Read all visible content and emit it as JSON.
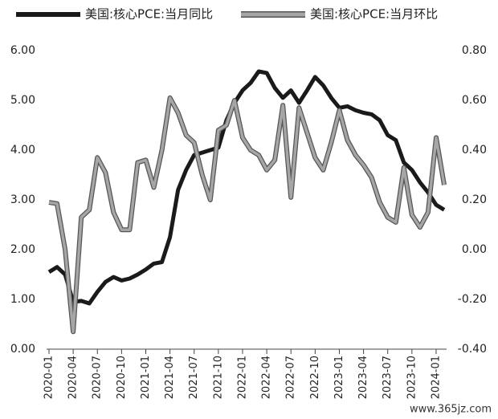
{
  "chart_data": {
    "type": "line",
    "categories": [
      "2020-01",
      null,
      null,
      "2020-04",
      null,
      null,
      "2020-07",
      null,
      null,
      "2020-10",
      null,
      null,
      "2021-01",
      null,
      null,
      "2021-04",
      null,
      null,
      "2021-07",
      null,
      null,
      "2021-10",
      null,
      null,
      "2022-01",
      null,
      null,
      "2022-04",
      null,
      null,
      "2022-07",
      null,
      null,
      "2022-10",
      null,
      null,
      "2023-01",
      null,
      null,
      "2023-04",
      null,
      null,
      "2023-07",
      null,
      null,
      "2023-10",
      null,
      null,
      "2024-01",
      null
    ],
    "series": [
      {
        "name": "美国:核心PCE:当月同比",
        "color": "#1a1a1a",
        "values": [
          1.55,
          1.65,
          1.5,
          0.95,
          0.97,
          0.92,
          1.15,
          1.35,
          1.45,
          1.38,
          1.42,
          1.5,
          1.6,
          1.72,
          1.75,
          2.25,
          3.2,
          3.6,
          3.9,
          3.95,
          4.0,
          4.05,
          4.6,
          4.95,
          5.2,
          5.35,
          5.58,
          5.55,
          5.25,
          5.05,
          5.2,
          4.95,
          5.2,
          5.47,
          5.3,
          5.05,
          4.85,
          4.88,
          4.8,
          4.75,
          4.72,
          4.6,
          4.3,
          4.2,
          3.75,
          3.6,
          3.35,
          3.15,
          2.9,
          2.8
        ]
      },
      {
        "name": "美国:核心PCE:当月环比",
        "color": "#a6a6a6",
        "axis": "y2",
        "values": [
          0.19,
          0.185,
          0.0,
          -0.33,
          0.13,
          0.16,
          0.37,
          0.31,
          0.15,
          0.08,
          0.08,
          0.35,
          0.36,
          0.25,
          0.4,
          0.61,
          0.55,
          0.46,
          0.43,
          0.3,
          0.2,
          0.48,
          0.5,
          0.6,
          0.45,
          0.4,
          0.38,
          0.32,
          0.36,
          0.58,
          0.21,
          0.57,
          0.47,
          0.37,
          0.32,
          0.43,
          0.56,
          0.44,
          0.38,
          0.34,
          0.29,
          0.19,
          0.13,
          0.11,
          0.33,
          0.14,
          0.09,
          0.15,
          0.45,
          0.26
        ]
      }
    ],
    "ylim": [
      0,
      6
    ],
    "yticks": [
      {
        "value": 0,
        "label": "0.00"
      },
      {
        "value": 1,
        "label": "1.00"
      },
      {
        "value": 2,
        "label": "2.00"
      },
      {
        "value": 3,
        "label": "3.00"
      },
      {
        "value": 4,
        "label": "4.00"
      },
      {
        "value": 5,
        "label": "5.00"
      },
      {
        "value": 6,
        "label": "6.00"
      }
    ],
    "y2lim": [
      -0.4,
      0.8
    ],
    "y2ticks": [
      {
        "value": -0.4,
        "label": "-0.40"
      },
      {
        "value": -0.2,
        "label": "-0.20"
      },
      {
        "value": 0,
        "label": "0.00"
      },
      {
        "value": 0.2,
        "label": "0.20"
      },
      {
        "value": 0.4,
        "label": "0.40"
      },
      {
        "value": 0.6,
        "label": "0.60"
      },
      {
        "value": 0.8,
        "label": "0.80"
      }
    ],
    "legend": "top",
    "watermark": "www.365jz.com"
  }
}
